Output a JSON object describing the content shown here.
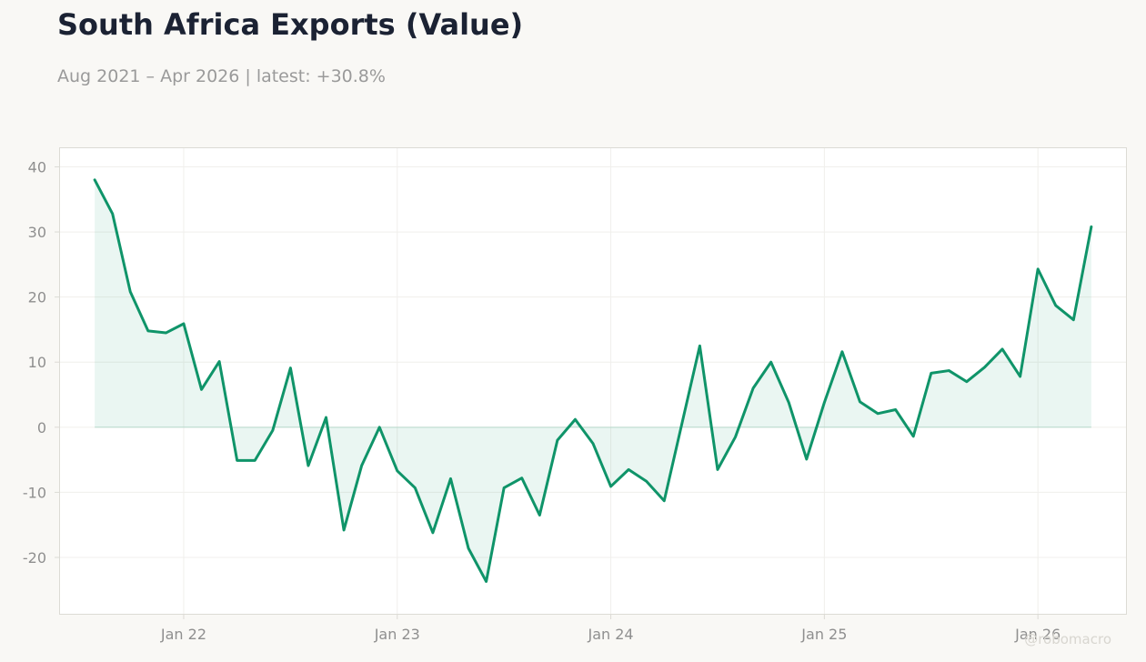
{
  "header": {
    "title": "South Africa Exports (Value)",
    "subtitle": "Aug 2021 – Apr 2026 | latest: +30.8%"
  },
  "watermark": "@robomacro",
  "colors": {
    "line": "#0f9469",
    "fill": "#0f9469",
    "grid": "#f0efec",
    "frame": "#dcdbd5",
    "plot_bg": "#ffffff"
  },
  "chart_data": {
    "type": "area",
    "title": "South Africa Exports (Value)",
    "xlabel": "",
    "ylabel": "",
    "x": [
      "2021-08",
      "2021-09",
      "2021-10",
      "2021-11",
      "2021-12",
      "2022-01",
      "2022-02",
      "2022-03",
      "2022-04",
      "2022-05",
      "2022-06",
      "2022-07",
      "2022-08",
      "2022-09",
      "2022-10",
      "2022-11",
      "2022-12",
      "2023-01",
      "2023-02",
      "2023-03",
      "2023-04",
      "2023-05",
      "2023-06",
      "2023-07",
      "2023-08",
      "2023-09",
      "2023-10",
      "2023-11",
      "2023-12",
      "2024-01",
      "2024-02",
      "2024-03",
      "2024-04",
      "2024-05",
      "2024-06",
      "2024-07",
      "2024-08",
      "2024-09",
      "2024-10",
      "2024-11",
      "2024-12",
      "2025-01",
      "2025-02",
      "2025-03",
      "2025-04",
      "2025-05",
      "2025-06",
      "2025-07",
      "2025-08",
      "2025-09",
      "2025-10",
      "2025-11",
      "2025-12",
      "2026-01",
      "2026-02",
      "2026-03",
      "2026-04"
    ],
    "series": [
      {
        "values": [
          38.0,
          32.8,
          20.8,
          14.8,
          14.5,
          15.9,
          5.8,
          10.1,
          -5.1,
          -5.1,
          -0.5,
          9.1,
          -5.9,
          1.5,
          -15.8,
          -5.9,
          0.0,
          -6.7,
          -9.3,
          -16.2,
          -7.9,
          -18.6,
          -23.7,
          -9.3,
          -7.8,
          -13.5,
          -2.0,
          1.2,
          -2.5,
          -9.1,
          -6.5,
          -8.3,
          -11.3,
          0.6,
          12.5,
          -6.5,
          -1.5,
          6.0,
          10.0,
          3.8,
          -4.9,
          3.8,
          11.6,
          3.9,
          2.1,
          2.7,
          -1.4,
          8.3,
          8.7,
          7.0,
          9.2,
          12.0,
          7.8,
          24.3,
          18.7,
          16.5,
          30.8
        ]
      }
    ],
    "x_ticks": [
      {
        "label": "Jan 22",
        "x": "2022-01"
      },
      {
        "label": "Jan 23",
        "x": "2023-01"
      },
      {
        "label": "Jan 24",
        "x": "2024-01"
      },
      {
        "label": "Jan 25",
        "x": "2025-01"
      },
      {
        "label": "Jan 26",
        "x": "2026-01"
      }
    ],
    "y_ticks": [
      40,
      30,
      20,
      10,
      0,
      -10,
      -20
    ],
    "ylim": [
      -28.8,
      43.0
    ],
    "xlim": [
      "2021-06",
      "2026-06"
    ],
    "grid": true,
    "baseline": 0
  }
}
